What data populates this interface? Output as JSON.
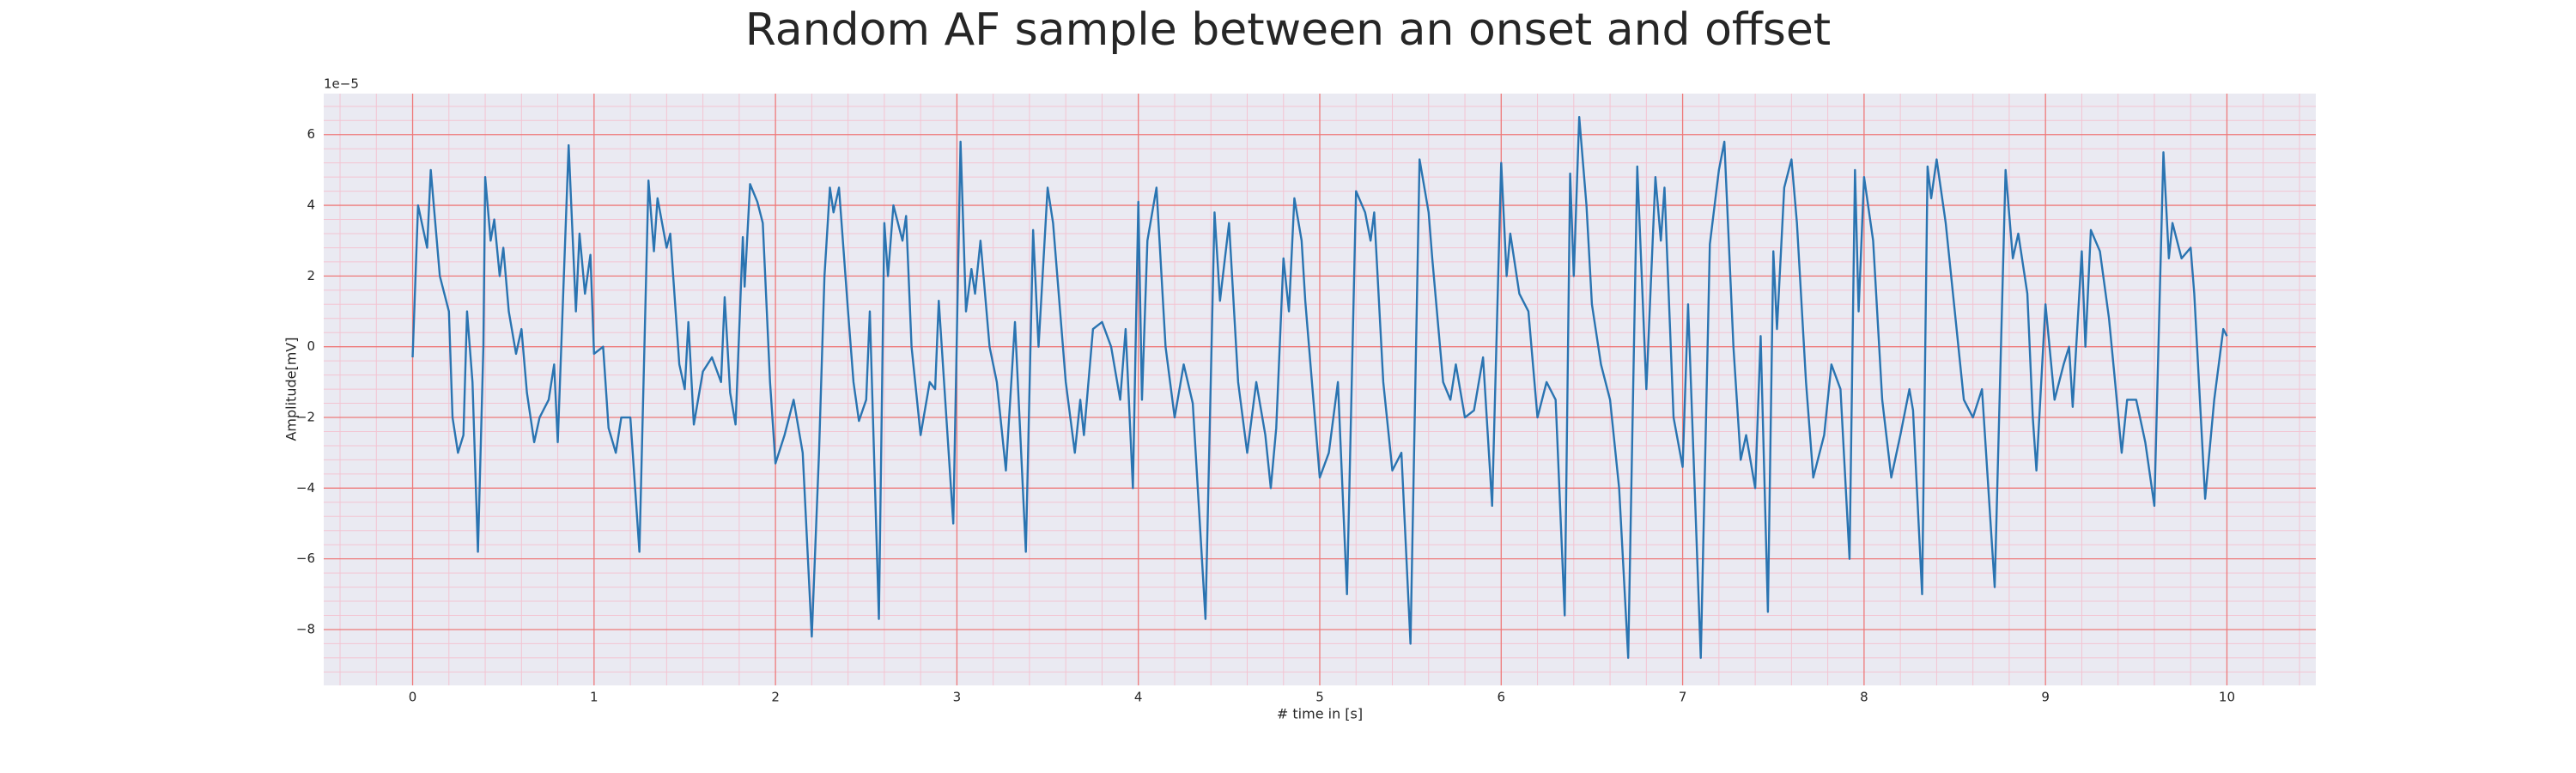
{
  "chart_data": {
    "type": "line",
    "title": "Random AF sample between an onset and offset",
    "xlabel": "# time in [s]",
    "ylabel": "Amplitude[mV]",
    "y_offset_text": "1e−5",
    "color": "#2a74b1",
    "grid": true,
    "minor_grid": true,
    "grid_color": "#ee7a7a",
    "minor_grid_color": "#f3c4d2",
    "background": "#eaeaf2",
    "xlim": [
      -0.49,
      10.49
    ],
    "ylim": [
      -9.58,
      7.16
    ],
    "xticks": [
      0,
      1,
      2,
      3,
      4,
      5,
      6,
      7,
      8,
      9,
      10
    ],
    "yticks": [
      {
        "value": -8,
        "label": "−8"
      },
      {
        "value": -6,
        "label": "−6"
      },
      {
        "value": -4,
        "label": "−4"
      },
      {
        "value": -2,
        "label": "−2"
      },
      0,
      2,
      4,
      6
    ],
    "x": [
      0,
      0.03,
      0.08,
      0.1,
      0.15,
      0.2,
      0.22,
      0.25,
      0.28,
      0.3,
      0.33,
      0.36,
      0.39,
      0.4,
      0.43,
      0.45,
      0.48,
      0.5,
      0.53,
      0.57,
      0.6,
      0.63,
      0.67,
      0.7,
      0.75,
      0.78,
      0.8,
      0.86,
      0.9,
      0.92,
      0.95,
      0.98,
      1.0,
      1.05,
      1.08,
      1.12,
      1.15,
      1.2,
      1.25,
      1.3,
      1.33,
      1.35,
      1.4,
      1.42,
      1.47,
      1.5,
      1.52,
      1.55,
      1.6,
      1.65,
      1.7,
      1.72,
      1.75,
      1.78,
      1.82,
      1.83,
      1.86,
      1.9,
      1.93,
      1.97,
      2.0,
      2.05,
      2.1,
      2.15,
      2.2,
      2.24,
      2.27,
      2.3,
      2.32,
      2.35,
      2.4,
      2.43,
      2.46,
      2.5,
      2.52,
      2.57,
      2.6,
      2.62,
      2.65,
      2.7,
      2.72,
      2.75,
      2.8,
      2.85,
      2.88,
      2.9,
      2.98,
      3.02,
      3.05,
      3.08,
      3.1,
      3.13,
      3.18,
      3.22,
      3.27,
      3.32,
      3.38,
      3.42,
      3.45,
      3.5,
      3.53,
      3.6,
      3.65,
      3.68,
      3.7,
      3.75,
      3.8,
      3.85,
      3.9,
      3.93,
      3.97,
      4.0,
      4.02,
      4.05,
      4.1,
      4.15,
      4.2,
      4.25,
      4.3,
      4.37,
      4.42,
      4.45,
      4.5,
      4.55,
      4.6,
      4.65,
      4.7,
      4.73,
      4.76,
      4.8,
      4.83,
      4.86,
      4.9,
      4.92,
      5.0,
      5.05,
      5.1,
      5.15,
      5.2,
      5.25,
      5.28,
      5.3,
      5.35,
      5.4,
      5.45,
      5.5,
      5.55,
      5.6,
      5.62,
      5.68,
      5.72,
      5.75,
      5.8,
      5.85,
      5.9,
      5.95,
      6.0,
      6.03,
      6.05,
      6.1,
      6.15,
      6.2,
      6.25,
      6.3,
      6.35,
      6.38,
      6.4,
      6.43,
      6.47,
      6.5,
      6.55,
      6.6,
      6.65,
      6.7,
      6.75,
      6.8,
      6.85,
      6.88,
      6.9,
      6.95,
      7.0,
      7.03,
      7.1,
      7.15,
      7.2,
      7.23,
      7.28,
      7.32,
      7.35,
      7.4,
      7.43,
      7.47,
      7.5,
      7.52,
      7.56,
      7.6,
      7.63,
      7.68,
      7.72,
      7.78,
      7.82,
      7.87,
      7.92,
      7.95,
      7.97,
      8.0,
      8.05,
      8.1,
      8.15,
      8.2,
      8.25,
      8.27,
      8.32,
      8.35,
      8.37,
      8.4,
      8.45,
      8.5,
      8.55,
      8.6,
      8.65,
      8.72,
      8.78,
      8.82,
      8.85,
      8.9,
      8.93,
      8.95,
      9.0,
      9.05,
      9.1,
      9.13,
      9.15,
      9.2,
      9.22,
      9.25,
      9.3,
      9.35,
      9.38,
      9.42,
      9.45,
      9.5,
      9.55,
      9.6,
      9.65,
      9.68,
      9.7,
      9.75,
      9.8,
      9.82,
      9.88,
      9.93,
      9.98,
      10.0
    ],
    "values": [
      -0.3,
      4,
      2.8,
      5,
      2,
      1,
      -2,
      -3,
      -2.5,
      1,
      -1,
      -5.8,
      0,
      4.8,
      3,
      3.6,
      2,
      2.8,
      1,
      -0.2,
      0.5,
      -1.3,
      -2.7,
      -2,
      -1.5,
      -0.5,
      -2.7,
      5.7,
      1,
      3.2,
      1.5,
      2.6,
      -0.2,
      0,
      -2.3,
      -3,
      -2,
      -2,
      -5.8,
      4.7,
      2.7,
      4.2,
      2.8,
      3.2,
      -0.5,
      -1.2,
      0.7,
      -2.2,
      -0.7,
      -0.3,
      -1,
      1.4,
      -1.3,
      -2.2,
      3.1,
      1.7,
      4.6,
      4.1,
      3.5,
      -1,
      -3.3,
      -2.5,
      -1.5,
      -3,
      -8.2,
      -3,
      2,
      4.5,
      3.8,
      4.5,
      1,
      -1,
      -2.1,
      -1.5,
      1,
      -7.7,
      3.5,
      2,
      4,
      3,
      3.7,
      0,
      -2.5,
      -1,
      -1.2,
      1.3,
      -5,
      5.8,
      1,
      2.2,
      1.5,
      3,
      0,
      -1,
      -3.5,
      0.7,
      -5.8,
      3.3,
      0,
      4.5,
      3.5,
      -1,
      -3,
      -1.5,
      -2.5,
      0.5,
      0.7,
      0,
      -1.5,
      0.5,
      -4,
      4.1,
      -1.5,
      3,
      4.5,
      0,
      -2,
      -0.5,
      -1.6,
      -7.7,
      3.8,
      1.3,
      3.5,
      -1,
      -3,
      -1,
      -2.5,
      -4,
      -2.3,
      2.5,
      1,
      4.2,
      3,
      1.3,
      -3.7,
      -3,
      -1,
      -7,
      4.4,
      3.8,
      3,
      3.8,
      -1,
      -3.5,
      -3,
      -8.4,
      5.3,
      3.8,
      2.5,
      -1,
      -1.5,
      -0.5,
      -2,
      -1.8,
      -0.3,
      -4.5,
      5.2,
      2,
      3.2,
      1.5,
      1,
      -2,
      -1,
      -1.5,
      -7.6,
      4.9,
      2,
      6.5,
      4,
      1.2,
      -0.5,
      -1.5,
      -4,
      -8.8,
      5.1,
      -1.2,
      4.8,
      3,
      4.5,
      -2,
      -3.4,
      1.2,
      -8.8,
      2.9,
      5,
      5.8,
      0,
      -3.2,
      -2.5,
      -4,
      0.3,
      -7.5,
      2.7,
      0.5,
      4.5,
      5.3,
      3.5,
      -1,
      -3.7,
      -2.5,
      -0.5,
      -1.2,
      -6,
      5,
      1,
      4.8,
      3,
      -1.5,
      -3.7,
      -2.5,
      -1.2,
      -1.8,
      -7,
      5.1,
      4.2,
      5.3,
      3.5,
      1,
      -1.5,
      -2,
      -1.2,
      -6.8,
      5,
      2.5,
      3.2,
      1.5,
      -2,
      -3.5,
      1.2,
      -1.5,
      -0.5,
      0,
      -1.7,
      2.7,
      0,
      3.3,
      2.7,
      0.8,
      -0.8,
      -3,
      -1.5,
      -1.5,
      -2.7,
      -4.5,
      5.5,
      2.5,
      3.5,
      2.5,
      2.8,
      1.5,
      -4.3,
      -1.5,
      0.5,
      0.3
    ]
  }
}
